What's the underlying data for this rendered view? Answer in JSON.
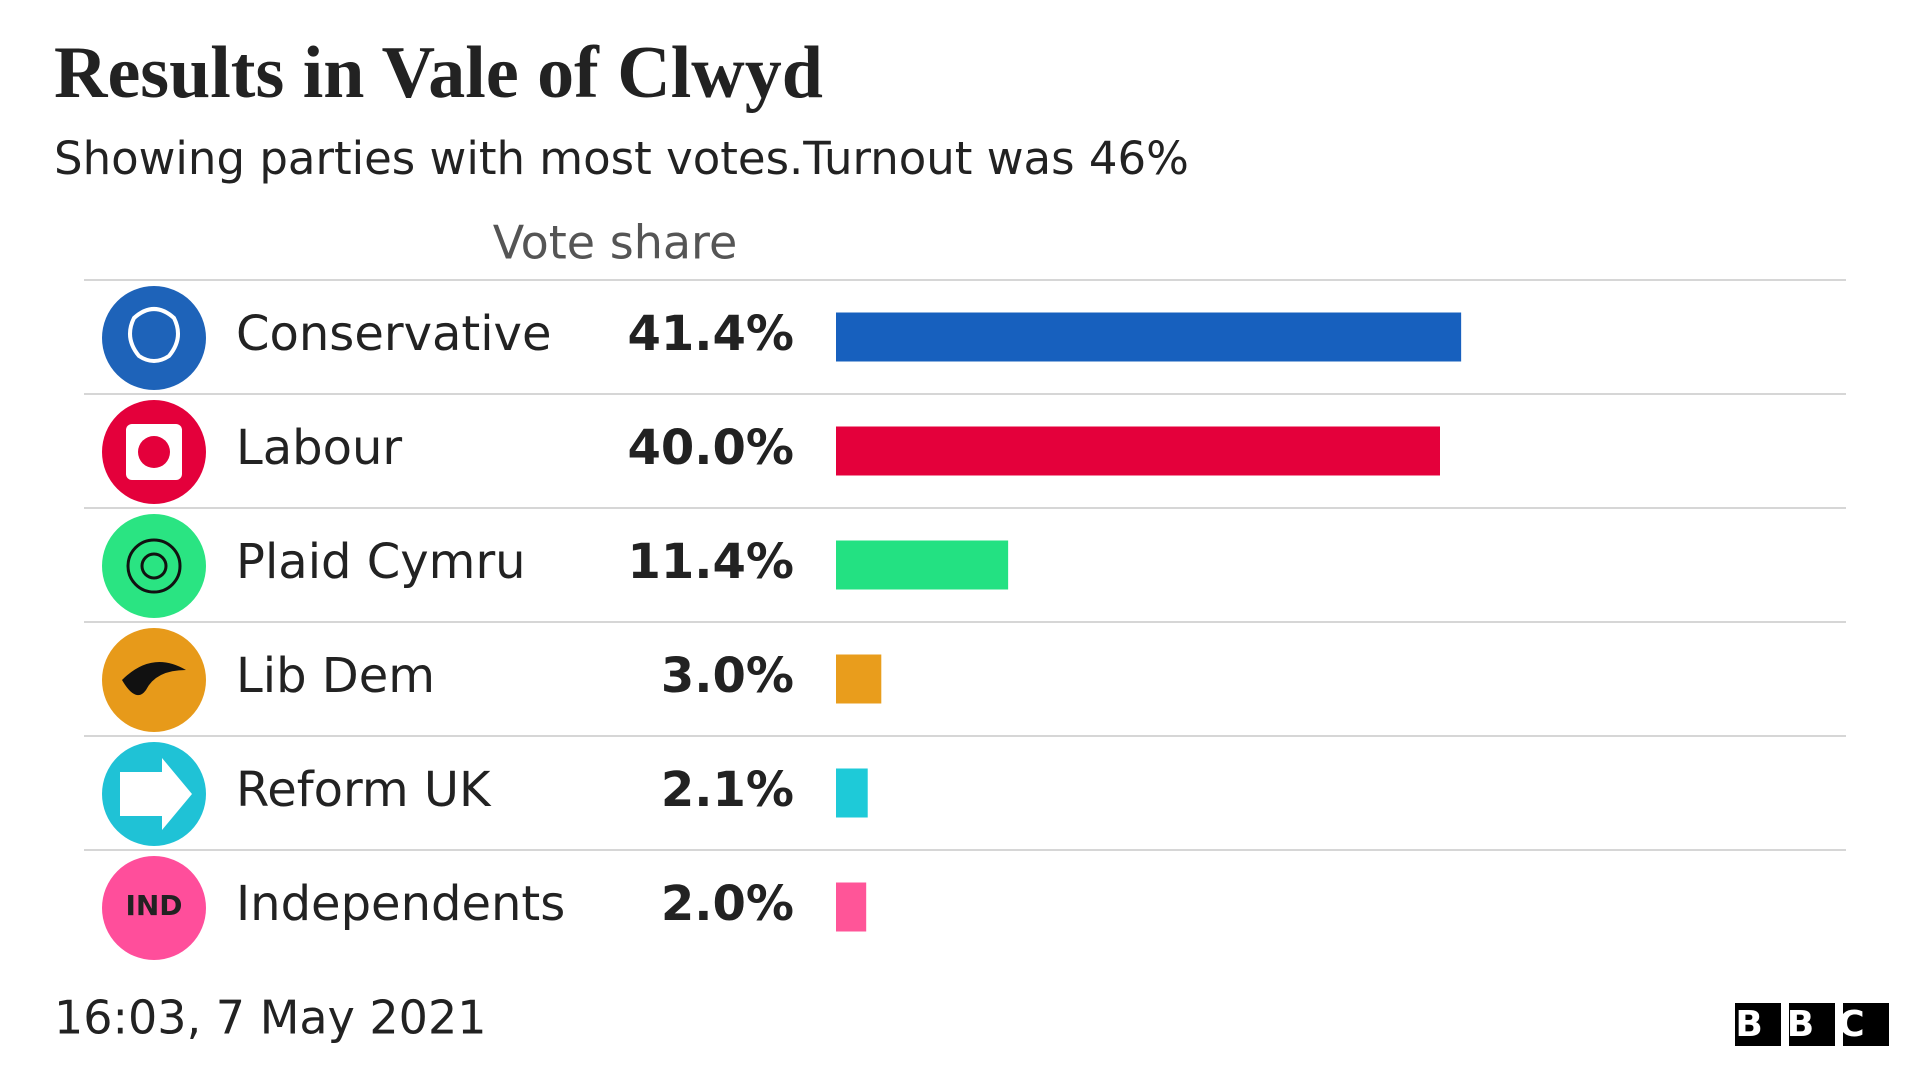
{
  "chart_data": {
    "type": "bar",
    "title": "Results in Vale of Clwyd",
    "subtitle": "Showing parties with most votes.Turnout was 46%",
    "column_header": "Vote share",
    "categories": [
      "Conservative",
      "Labour",
      "Plaid Cymru",
      "Lib Dem",
      "Reform UK",
      "Independents"
    ],
    "values": [
      41.4,
      40.0,
      11.4,
      3.0,
      2.1,
      2.0
    ],
    "value_labels": [
      "41.4%",
      "40.0%",
      "11.4%",
      "3.0%",
      "2.1%",
      "2.0%"
    ],
    "colors": [
      "#1760be",
      "#e4003b",
      "#23e182",
      "#e99d1c",
      "#1ecad8",
      "#ff5598"
    ],
    "badges": [
      null,
      null,
      null,
      null,
      null,
      "IND"
    ],
    "timestamp": "16:03,  7 May 2021",
    "source": "BBC"
  }
}
